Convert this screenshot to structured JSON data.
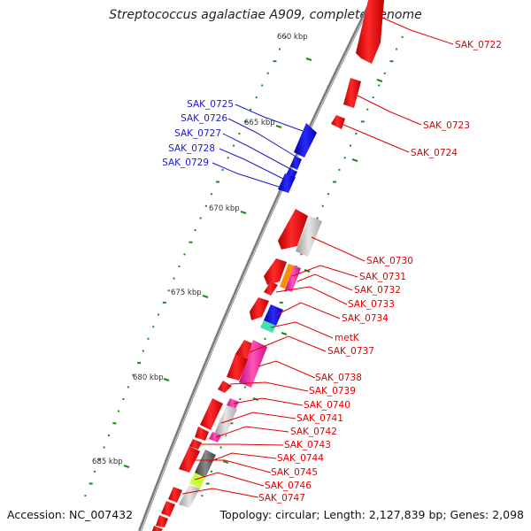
{
  "title": "Streptococcus agalactiae A909, complete genome",
  "accession_text": "Accession: NC_007432",
  "topology_text": "Topology: circular; Length: 2,127,839 bp; Genes: 2,098",
  "scale_labels": [
    "660 kbp",
    "665 kbp",
    "670 kbp",
    "675 kbp",
    "680 kbp",
    "685 kbp"
  ],
  "colors": {
    "forward_gene": "#ff0000",
    "reverse_gene": "#0000ff",
    "pseudo_gene": "#c8c8c8",
    "rna_gene": "#ff1493",
    "backbone": "#888888",
    "tick": "#1a8a1a",
    "label_forward": "#e00000",
    "label_reverse": "#1a1acc"
  },
  "left_labels": [
    "SAK_0725",
    "SAK_0726",
    "SAK_0727",
    "SAK_0728",
    "SAK_0729"
  ],
  "right_labels": [
    "SAK_0722",
    "SAK_0723",
    "SAK_0724",
    "SAK_0730",
    "SAK_0731",
    "SAK_0732",
    "SAK_0733",
    "SAK_0734",
    "metK",
    "SAK_0737",
    "SAK_0738",
    "SAK_0739",
    "SAK_0740",
    "SAK_0741",
    "SAK_0742",
    "SAK_0743",
    "SAK_0744",
    "SAK_0745",
    "SAK_0746",
    "SAK_0747"
  ]
}
